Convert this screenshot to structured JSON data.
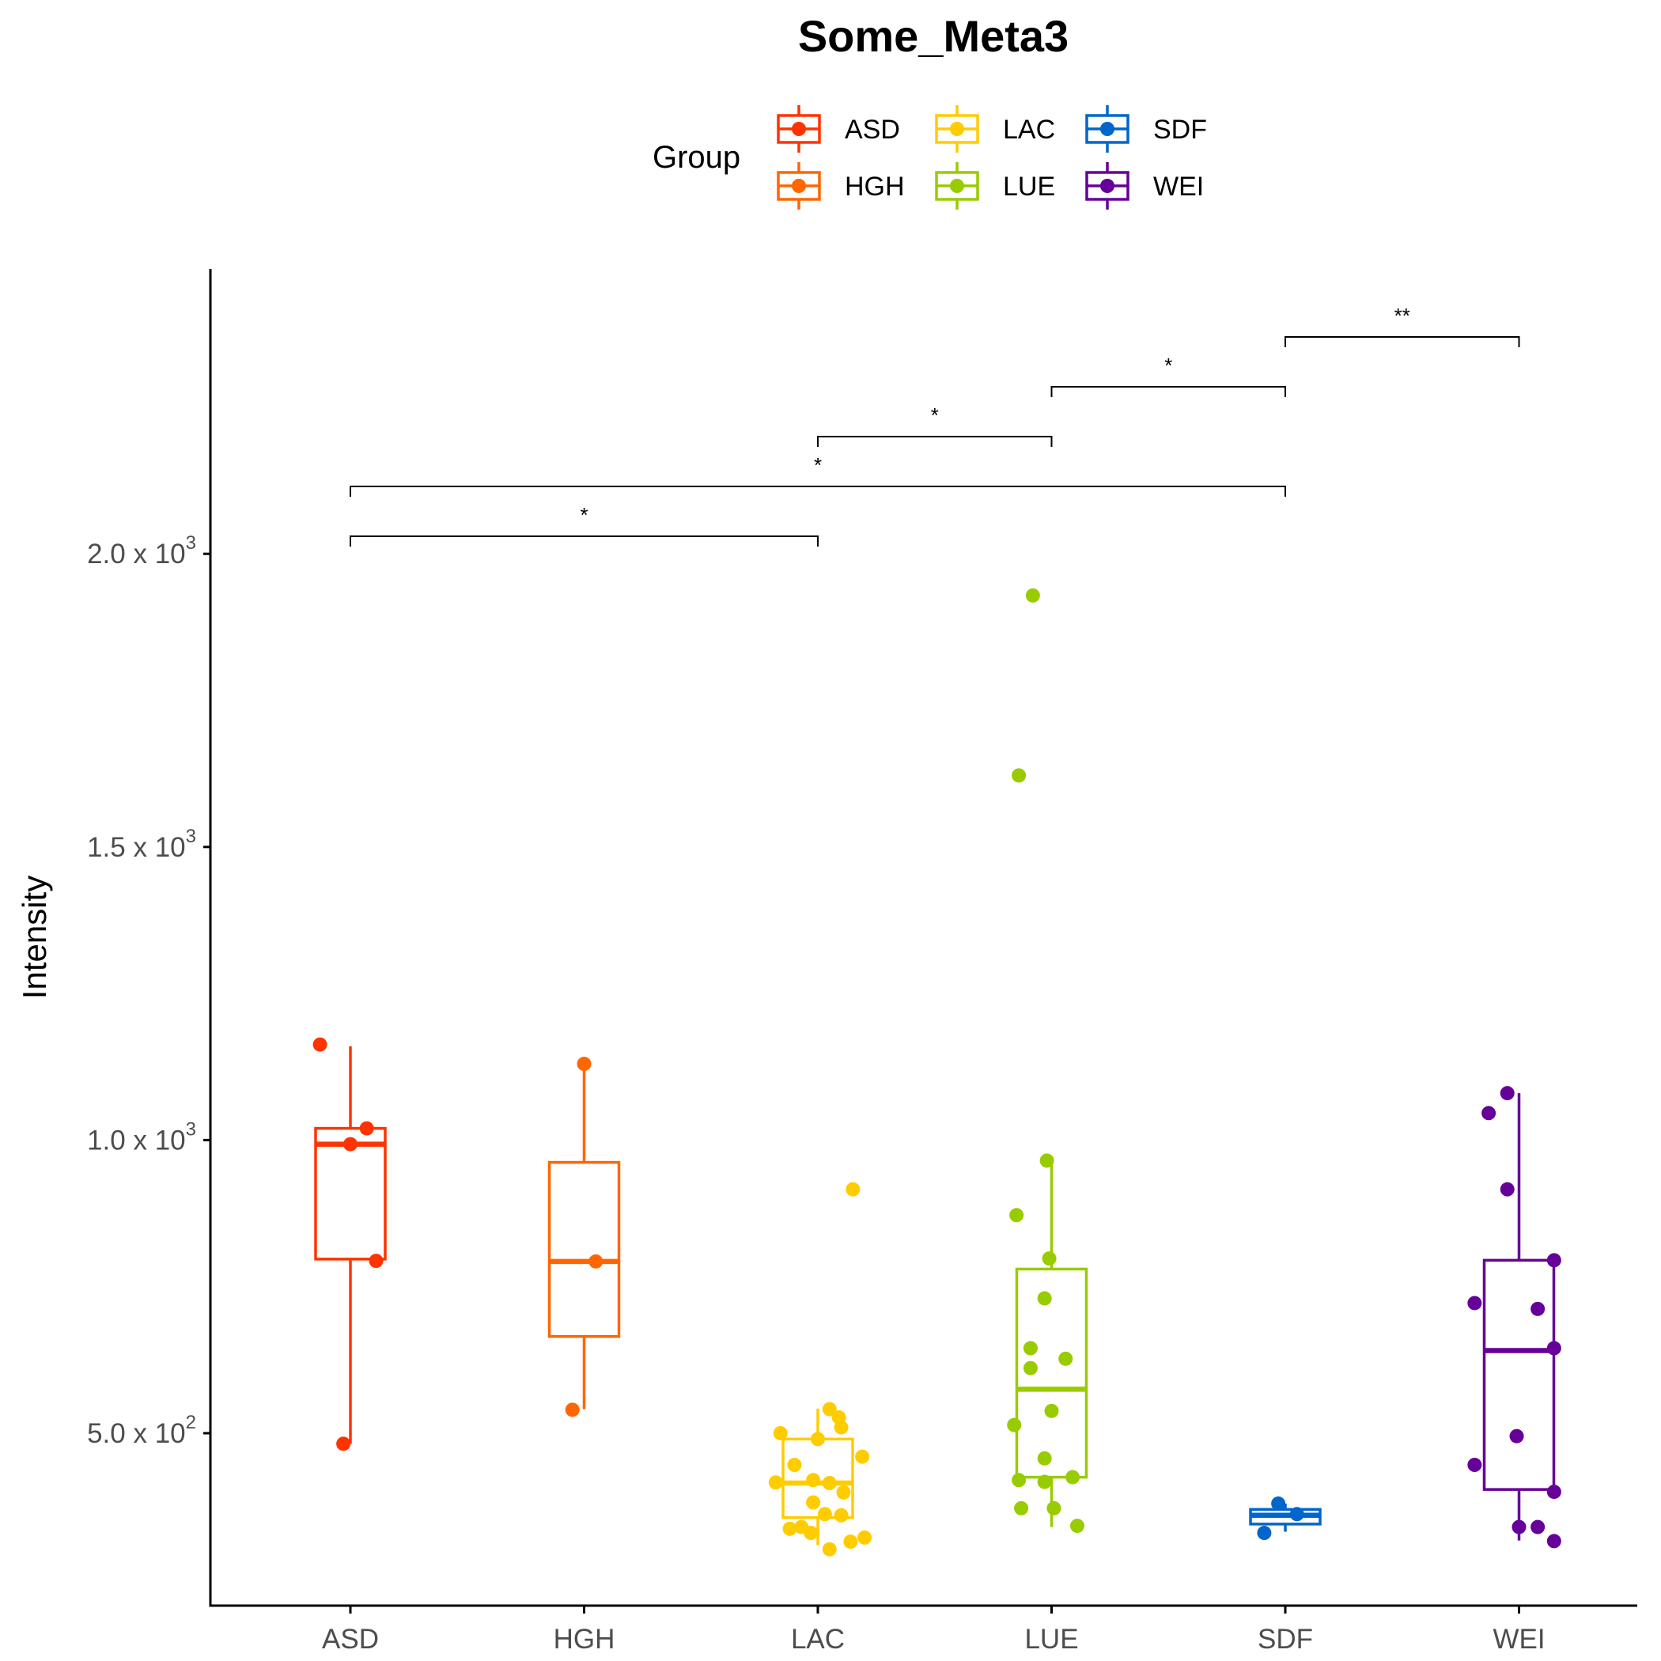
{
  "chart_data": {
    "type": "box",
    "title": "Some_Meta3",
    "xlabel": "",
    "ylabel": "Intensity",
    "ylim": [
      200,
      2450
    ],
    "y_ticks": [
      {
        "value": 500,
        "mantissa": "5.0 x 10",
        "exponent": "2"
      },
      {
        "value": 1000,
        "mantissa": "1.0 x 10",
        "exponent": "3"
      },
      {
        "value": 1500,
        "mantissa": "1.5 x 10",
        "exponent": "3"
      },
      {
        "value": 2000,
        "mantissa": "2.0 x 10",
        "exponent": "3"
      }
    ],
    "legend": {
      "title": "Group",
      "placement": "top"
    },
    "categories": [
      "ASD",
      "HGH",
      "LAC",
      "LUE",
      "SDF",
      "WEI"
    ],
    "groups": [
      {
        "name": "ASD",
        "color": "#FF3300",
        "q1": 797,
        "median": 993,
        "q3": 1020,
        "whisker_low": 482,
        "whisker_high": 1160,
        "points": [
          [
            -0.13,
            1163
          ],
          [
            -0.03,
            482
          ],
          [
            0.0,
            993
          ],
          [
            0.07,
            1020
          ],
          [
            0.11,
            794
          ]
        ]
      },
      {
        "name": "HGH",
        "color": "#FF6600",
        "q1": 665,
        "median": 793,
        "q3": 962,
        "whisker_low": 541,
        "whisker_high": 1130,
        "points": [
          [
            -0.05,
            540
          ],
          [
            0.0,
            1130
          ],
          [
            0.05,
            793
          ]
        ]
      },
      {
        "name": "LAC",
        "color": "#FFCC00",
        "q1": 356,
        "median": 415,
        "q3": 490,
        "whisker_low": 309,
        "whisker_high": 542,
        "points": [
          [
            -0.16,
            500
          ],
          [
            -0.18,
            416
          ],
          [
            -0.1,
            446
          ],
          [
            -0.12,
            337
          ],
          [
            -0.07,
            340
          ],
          [
            -0.03,
            330
          ],
          [
            -0.02,
            420
          ],
          [
            -0.02,
            382
          ],
          [
            0.0,
            490
          ],
          [
            0.03,
            362
          ],
          [
            0.05,
            415
          ],
          [
            0.05,
            302
          ],
          [
            0.05,
            541
          ],
          [
            0.09,
            527
          ],
          [
            0.1,
            510
          ],
          [
            0.1,
            360
          ],
          [
            0.11,
            399
          ],
          [
            0.15,
            916
          ],
          [
            0.14,
            315
          ],
          [
            0.19,
            460
          ],
          [
            0.2,
            322
          ]
        ]
      },
      {
        "name": "LUE",
        "color": "#99CC00",
        "q1": 425,
        "median": 575,
        "q3": 780,
        "whisker_low": 340,
        "whisker_high": 965,
        "points": [
          [
            -0.15,
            872
          ],
          [
            -0.16,
            514
          ],
          [
            -0.14,
            420
          ],
          [
            -0.13,
            372
          ],
          [
            -0.14,
            1622
          ],
          [
            -0.08,
            1929
          ],
          [
            -0.09,
            645
          ],
          [
            -0.09,
            611
          ],
          [
            -0.03,
            730
          ],
          [
            -0.03,
            457
          ],
          [
            -0.02,
            965
          ],
          [
            -0.03,
            417
          ],
          [
            -0.01,
            798
          ],
          [
            0.0,
            538
          ],
          [
            0.01,
            372
          ],
          [
            0.06,
            627
          ],
          [
            0.09,
            425
          ],
          [
            0.11,
            342
          ]
        ]
      },
      {
        "name": "SDF",
        "color": "#0066CC",
        "q1": 345,
        "median": 360,
        "q3": 370,
        "whisker_low": 332,
        "whisker_high": 380,
        "points": [
          [
            -0.09,
            330
          ],
          [
            -0.03,
            380
          ],
          [
            0.05,
            362
          ]
        ]
      },
      {
        "name": "WEI",
        "color": "#660099",
        "q1": 404,
        "median": 641,
        "q3": 795,
        "whisker_low": 317,
        "whisker_high": 1080,
        "points": [
          [
            -0.19,
            722
          ],
          [
            -0.19,
            446
          ],
          [
            -0.13,
            1046
          ],
          [
            -0.05,
            916
          ],
          [
            -0.05,
            1080
          ],
          [
            -0.01,
            495
          ],
          [
            0.0,
            340
          ],
          [
            0.08,
            340
          ],
          [
            0.08,
            712
          ],
          [
            0.15,
            400
          ],
          [
            0.15,
            795
          ],
          [
            0.15,
            645
          ],
          [
            0.15,
            316
          ]
        ]
      }
    ],
    "comparisons": [
      {
        "from": "ASD",
        "to": "LAC",
        "label": "*",
        "y": 2030
      },
      {
        "from": "ASD",
        "to": "SDF",
        "label": "*",
        "y": 2115
      },
      {
        "from": "LAC",
        "to": "LUE",
        "label": "*",
        "y": 2200
      },
      {
        "from": "LUE",
        "to": "SDF",
        "label": "*",
        "y": 2285
      },
      {
        "from": "SDF",
        "to": "WEI",
        "label": "**",
        "y": 2370
      }
    ]
  }
}
